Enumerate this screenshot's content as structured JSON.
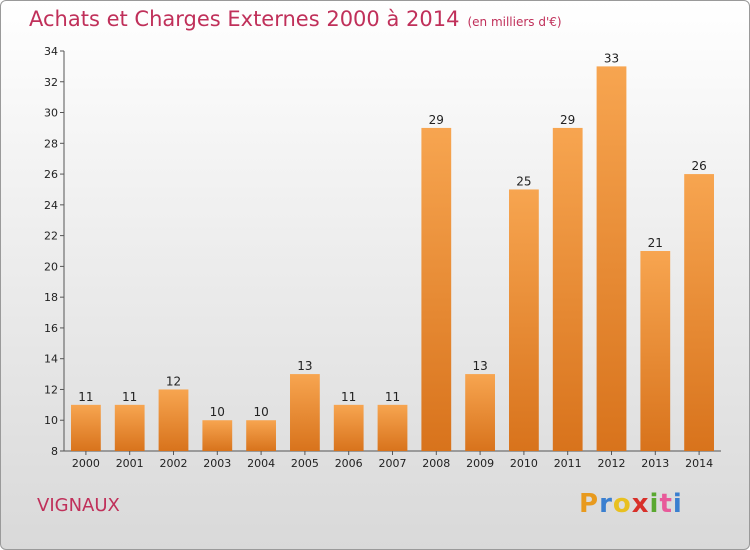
{
  "header": {
    "title": "Achats et Charges Externes 2000 à 2014",
    "unit": "(en milliers d'€)"
  },
  "footer": {
    "commune": "VIGNAUX"
  },
  "brand": {
    "letters": [
      "P",
      "r",
      "o",
      "x",
      "i",
      "t",
      "i"
    ],
    "colors": [
      "#e89a1e",
      "#3a7fd0",
      "#e8c020",
      "#d8302a",
      "#5aa830",
      "#e85a9a",
      "#3a7fd0"
    ]
  },
  "colors": {
    "bar": "#f0922e",
    "title": "#c0305a"
  },
  "chart_data": {
    "type": "bar",
    "title": "Achats et Charges Externes 2000 à 2014",
    "categories": [
      "2000",
      "2001",
      "2002",
      "2003",
      "2004",
      "2005",
      "2006",
      "2007",
      "2008",
      "2009",
      "2010",
      "2011",
      "2012",
      "2013",
      "2014"
    ],
    "values": [
      11,
      11,
      12,
      10,
      10,
      13,
      11,
      11,
      29,
      13,
      25,
      29,
      33,
      21,
      26
    ],
    "ylim": [
      8,
      34
    ],
    "yticks": [
      8,
      10,
      12,
      14,
      16,
      18,
      20,
      22,
      24,
      26,
      28,
      30,
      32,
      34
    ],
    "grid": false,
    "legend": "none"
  }
}
